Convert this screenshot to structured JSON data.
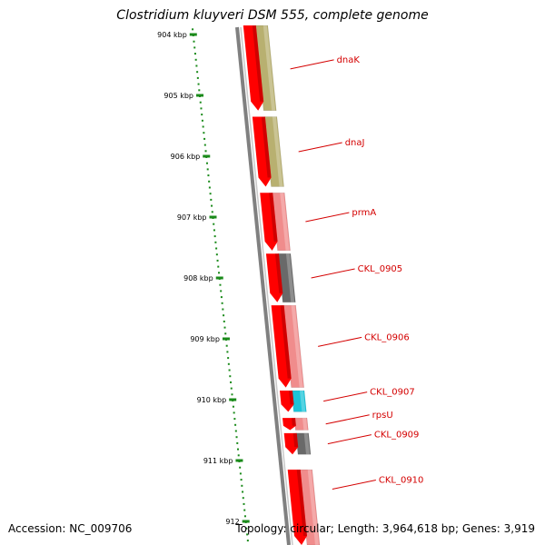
{
  "title": "Clostridium kluyveri DSM 555, complete genome",
  "footer": {
    "accession": "Accession: NC_009706",
    "topology": "Topology: circular; Length: 3,964,618 bp; Genes: 3,919"
  },
  "colors": {
    "cds_red": "#ff0000",
    "ruler_green": "#1a8a1a",
    "backbone_grey": "#808080",
    "label_red": "#d40000",
    "cog_olive": "#b8b070",
    "cog_pink": "#f08c8c",
    "cog_grey": "#696969",
    "cog_cyan": "#1cc4d8"
  },
  "ruler": {
    "unit": "kbp",
    "ticks": [
      "904 kbp",
      "905 kbp",
      "906 kbp",
      "907 kbp",
      "908 kbp",
      "909 kbp",
      "910 kbp",
      "911 kbp",
      "912"
    ]
  },
  "features": [
    {
      "label": "dnaK",
      "start": 903.8,
      "end": 905.25,
      "cog": "cog_olive"
    },
    {
      "label": "dnaJ",
      "start": 905.35,
      "end": 906.5,
      "cog": "cog_olive"
    },
    {
      "label": "prmA",
      "start": 906.6,
      "end": 907.55,
      "cog": "cog_pink"
    },
    {
      "label": "CKL_0905",
      "start": 907.6,
      "end": 908.4,
      "cog": "cog_grey"
    },
    {
      "label": "CKL_0906",
      "start": 908.45,
      "end": 909.8,
      "cog": "cog_pink"
    },
    {
      "label": "CKL_0907",
      "start": 909.85,
      "end": 910.2,
      "cog": "cog_cyan"
    },
    {
      "label": "rpsU",
      "start": 910.3,
      "end": 910.5,
      "cog": "cog_pink"
    },
    {
      "label": "CKL_0909",
      "start": 910.55,
      "end": 910.9,
      "cog": "cog_grey"
    },
    {
      "label": "CKL_0910",
      "start": 911.15,
      "end": 912.5,
      "cog": "cog_pink"
    }
  ]
}
